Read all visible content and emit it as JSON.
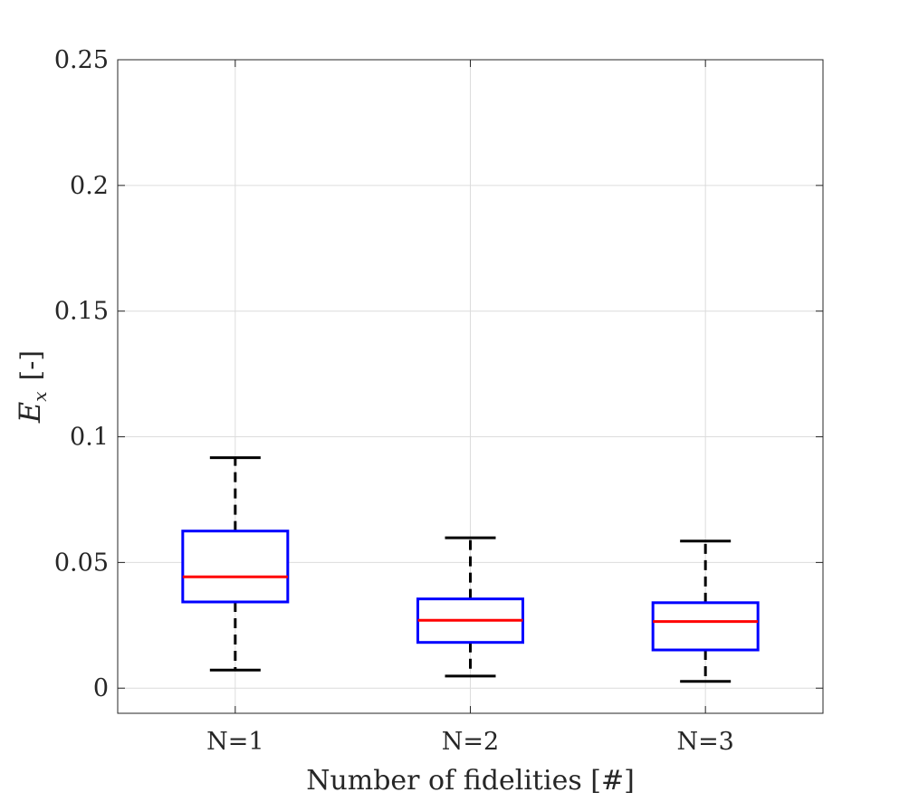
{
  "chart_data": {
    "type": "boxplot",
    "title": "",
    "xlabel": "Number of fidelities [#]",
    "ylabel": {
      "main": "E",
      "subscript": "x",
      "unit": "[-]"
    },
    "ylim": [
      -0.01,
      0.25
    ],
    "yticks": [
      {
        "value": 0,
        "label": "0"
      },
      {
        "value": 0.05,
        "label": "0.05"
      },
      {
        "value": 0.1,
        "label": "0.1"
      },
      {
        "value": 0.15,
        "label": "0.15"
      },
      {
        "value": 0.2,
        "label": "0.2"
      },
      {
        "value": 0.25,
        "label": "0.25"
      }
    ],
    "grid": true,
    "categories": [
      "N=1",
      "N=2",
      "N=3"
    ],
    "boxes": [
      {
        "category": "N=1",
        "whisker_low": 0.0072,
        "q1": 0.0343,
        "median": 0.0443,
        "q3": 0.0625,
        "whisker_high": 0.0917
      },
      {
        "category": "N=2",
        "whisker_low": 0.0048,
        "q1": 0.0182,
        "median": 0.027,
        "q3": 0.0355,
        "whisker_high": 0.0598
      },
      {
        "category": "N=3",
        "whisker_low": 0.0027,
        "q1": 0.0152,
        "median": 0.0265,
        "q3": 0.034,
        "whisker_high": 0.0585
      }
    ],
    "colors": {
      "box": "#0000ff",
      "median": "#ff0000",
      "whisker": "#000000",
      "grid": "#dcdcdc",
      "axis": "#262626"
    }
  }
}
